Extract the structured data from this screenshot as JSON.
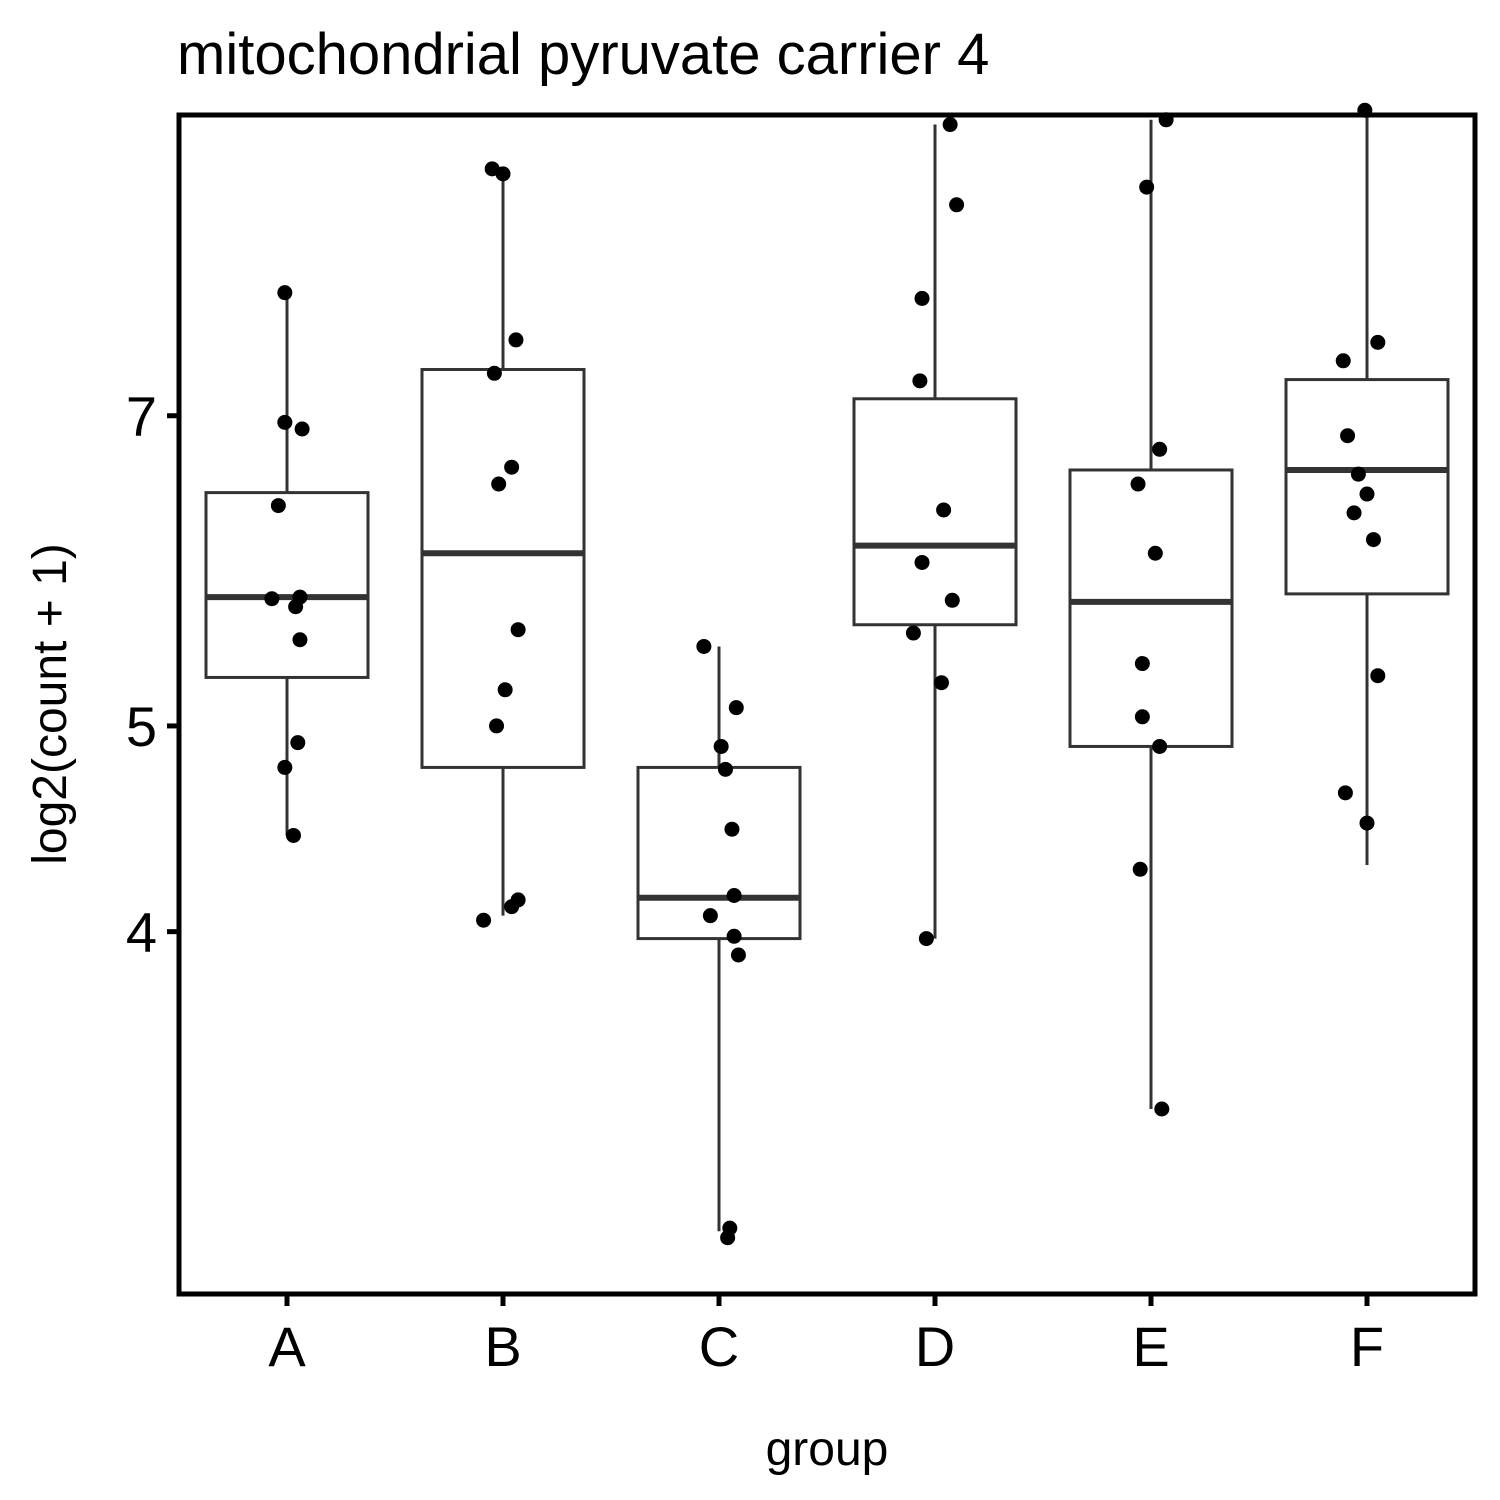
{
  "chart_data": {
    "type": "box",
    "title": "mitochondrial pyruvate carrier 4",
    "xlabel": "group",
    "ylabel": "log2(count + 1)",
    "y_scale": "log",
    "ylim": [
      2.7,
      9.7
    ],
    "y_ticks": [
      4,
      5,
      7
    ],
    "y_tick_labels": [
      "4",
      "5",
      "7"
    ],
    "categories": [
      "A",
      "B",
      "C",
      "D",
      "E",
      "F"
    ],
    "boxes": [
      {
        "category": "A",
        "whisker_low": 4.44,
        "q1": 5.27,
        "median": 5.75,
        "q3": 6.44,
        "whisker_high": 7.98
      },
      {
        "category": "B",
        "whisker_low": 4.07,
        "q1": 4.78,
        "median": 6.03,
        "q3": 7.36,
        "whisker_high": 9.1
      },
      {
        "category": "C",
        "whisker_low": 2.89,
        "q1": 3.97,
        "median": 4.15,
        "q3": 4.78,
        "whisker_high": 5.45
      },
      {
        "category": "D",
        "whisker_low": 3.97,
        "q1": 5.58,
        "median": 6.08,
        "q3": 7.13,
        "whisker_high": 9.6
      },
      {
        "category": "E",
        "whisker_low": 3.3,
        "q1": 4.89,
        "median": 5.72,
        "q3": 6.6,
        "whisker_high": 9.65
      },
      {
        "category": "F",
        "whisker_low": 4.3,
        "q1": 5.77,
        "median": 6.6,
        "q3": 7.28,
        "whisker_high": 9.75
      }
    ],
    "points": [
      {
        "category": "A",
        "jitter": -0.01,
        "y": 8.0
      },
      {
        "category": "A",
        "jitter": -0.01,
        "y": 6.95
      },
      {
        "category": "A",
        "jitter": 0.07,
        "y": 6.9
      },
      {
        "category": "A",
        "jitter": -0.04,
        "y": 6.35
      },
      {
        "category": "A",
        "jitter": -0.07,
        "y": 5.74
      },
      {
        "category": "A",
        "jitter": 0.06,
        "y": 5.75
      },
      {
        "category": "A",
        "jitter": 0.04,
        "y": 5.69
      },
      {
        "category": "A",
        "jitter": 0.06,
        "y": 5.49
      },
      {
        "category": "A",
        "jitter": 0.05,
        "y": 4.91
      },
      {
        "category": "A",
        "jitter": -0.01,
        "y": 4.78
      },
      {
        "category": "A",
        "jitter": 0.03,
        "y": 4.44
      },
      {
        "category": "B",
        "jitter": -0.05,
        "y": 9.15
      },
      {
        "category": "B",
        "jitter": 0.0,
        "y": 9.1
      },
      {
        "category": "B",
        "jitter": 0.06,
        "y": 7.6
      },
      {
        "category": "B",
        "jitter": -0.04,
        "y": 7.33
      },
      {
        "category": "B",
        "jitter": 0.04,
        "y": 6.62
      },
      {
        "category": "B",
        "jitter": -0.02,
        "y": 6.5
      },
      {
        "category": "B",
        "jitter": 0.07,
        "y": 5.55
      },
      {
        "category": "B",
        "jitter": 0.01,
        "y": 5.2
      },
      {
        "category": "B",
        "jitter": -0.03,
        "y": 5.0
      },
      {
        "category": "B",
        "jitter": 0.07,
        "y": 4.14
      },
      {
        "category": "B",
        "jitter": 0.04,
        "y": 4.11
      },
      {
        "category": "B",
        "jitter": -0.09,
        "y": 4.05
      },
      {
        "category": "C",
        "jitter": -0.07,
        "y": 5.45
      },
      {
        "category": "C",
        "jitter": 0.08,
        "y": 5.1
      },
      {
        "category": "C",
        "jitter": 0.01,
        "y": 4.89
      },
      {
        "category": "C",
        "jitter": 0.03,
        "y": 4.77
      },
      {
        "category": "C",
        "jitter": 0.06,
        "y": 4.47
      },
      {
        "category": "C",
        "jitter": 0.07,
        "y": 4.16
      },
      {
        "category": "C",
        "jitter": -0.04,
        "y": 4.07
      },
      {
        "category": "C",
        "jitter": 0.07,
        "y": 3.98
      },
      {
        "category": "C",
        "jitter": 0.09,
        "y": 3.9
      },
      {
        "category": "C",
        "jitter": 0.05,
        "y": 2.9
      },
      {
        "category": "C",
        "jitter": 0.04,
        "y": 2.87
      },
      {
        "category": "D",
        "jitter": 0.07,
        "y": 9.6
      },
      {
        "category": "D",
        "jitter": 0.1,
        "y": 8.8
      },
      {
        "category": "D",
        "jitter": -0.06,
        "y": 7.95
      },
      {
        "category": "D",
        "jitter": -0.07,
        "y": 7.27
      },
      {
        "category": "D",
        "jitter": 0.04,
        "y": 6.32
      },
      {
        "category": "D",
        "jitter": -0.06,
        "y": 5.97
      },
      {
        "category": "D",
        "jitter": 0.08,
        "y": 5.73
      },
      {
        "category": "D",
        "jitter": -0.1,
        "y": 5.53
      },
      {
        "category": "D",
        "jitter": 0.03,
        "y": 5.24
      },
      {
        "category": "D",
        "jitter": -0.04,
        "y": 3.97
      },
      {
        "category": "E",
        "jitter": 0.07,
        "y": 9.65
      },
      {
        "category": "E",
        "jitter": -0.02,
        "y": 8.97
      },
      {
        "category": "E",
        "jitter": 0.04,
        "y": 6.75
      },
      {
        "category": "E",
        "jitter": -0.06,
        "y": 6.5
      },
      {
        "category": "E",
        "jitter": 0.02,
        "y": 6.03
      },
      {
        "category": "E",
        "jitter": -0.04,
        "y": 5.35
      },
      {
        "category": "E",
        "jitter": -0.04,
        "y": 5.05
      },
      {
        "category": "E",
        "jitter": 0.04,
        "y": 4.89
      },
      {
        "category": "E",
        "jitter": -0.05,
        "y": 4.28
      },
      {
        "category": "E",
        "jitter": 0.05,
        "y": 3.3
      },
      {
        "category": "F",
        "jitter": -0.01,
        "y": 9.75
      },
      {
        "category": "F",
        "jitter": 0.05,
        "y": 7.58
      },
      {
        "category": "F",
        "jitter": -0.11,
        "y": 7.43
      },
      {
        "category": "F",
        "jitter": -0.09,
        "y": 6.85
      },
      {
        "category": "F",
        "jitter": -0.04,
        "y": 6.57
      },
      {
        "category": "F",
        "jitter": 0.0,
        "y": 6.43
      },
      {
        "category": "F",
        "jitter": -0.06,
        "y": 6.3
      },
      {
        "category": "F",
        "jitter": 0.03,
        "y": 6.12
      },
      {
        "category": "F",
        "jitter": 0.05,
        "y": 5.28
      },
      {
        "category": "F",
        "jitter": -0.1,
        "y": 4.65
      },
      {
        "category": "F",
        "jitter": 0.0,
        "y": 4.5
      }
    ],
    "grid": false,
    "legend": "none",
    "colors": {
      "box_stroke": "#333333",
      "point": "#000000",
      "frame": "#000000",
      "background": "#ffffff"
    }
  }
}
